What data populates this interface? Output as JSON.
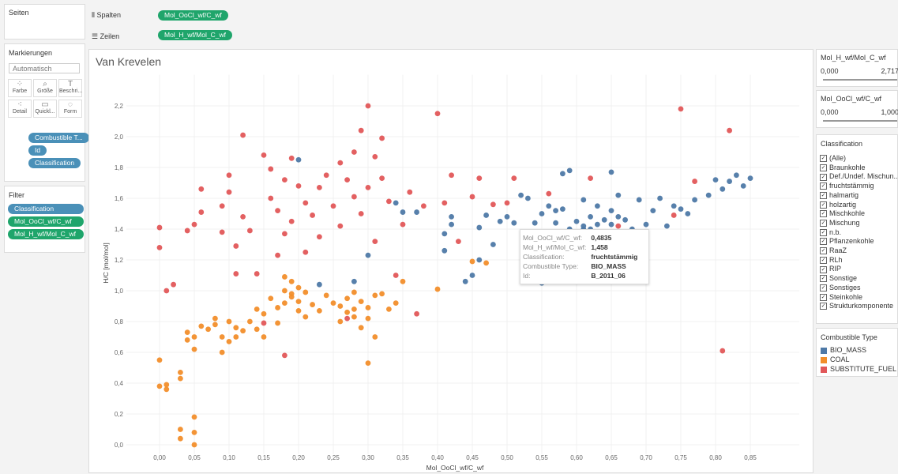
{
  "shelves": {
    "pages": "Seiten",
    "columns": {
      "label": "Spalten",
      "pill": "Mol_OoCl_wf/C_wf"
    },
    "rows": {
      "label": "Zeilen",
      "pill": "Mol_H_wf/Mol_C_wf"
    }
  },
  "marks": {
    "title": "Markierungen",
    "type": "Automatisch",
    "buttons": [
      "Farbe",
      "Größe",
      "Beschri...",
      "Detail",
      "Quickl...",
      "Form"
    ],
    "pills": [
      "Combustible T...",
      "Id",
      "Classification"
    ]
  },
  "filters": {
    "title": "Filter",
    "pills": [
      "Classification",
      "Mol_OoCl_wf/C_wf",
      "Mol_H_wf/Mol_C_wf"
    ]
  },
  "chart_data": {
    "type": "scatter",
    "title": "Van Krevelen",
    "x_label": "Mol_OoCl_wf/C_wf",
    "y_label": "H/C [mol/mol]",
    "xlim": [
      -0.025,
      0.875
    ],
    "ylim": [
      -0.05,
      2.35
    ],
    "grid": true,
    "xticks": [
      {
        "value": 0,
        "label": "0,00"
      },
      {
        "value": 0.05,
        "label": "0,05"
      },
      {
        "value": 0.1,
        "label": "0,10"
      },
      {
        "value": 0.15,
        "label": "0,15"
      },
      {
        "value": 0.2,
        "label": "0,20"
      },
      {
        "value": 0.25,
        "label": "0,25"
      },
      {
        "value": 0.3,
        "label": "0,30"
      },
      {
        "value": 0.35,
        "label": "0,35"
      },
      {
        "value": 0.4,
        "label": "0,40"
      },
      {
        "value": 0.45,
        "label": "0,45"
      },
      {
        "value": 0.5,
        "label": "0,50"
      },
      {
        "value": 0.55,
        "label": "0,55"
      },
      {
        "value": 0.6,
        "label": "0,60"
      },
      {
        "value": 0.65,
        "label": "0,65"
      },
      {
        "value": 0.7,
        "label": "0,70"
      },
      {
        "value": 0.75,
        "label": "0,75"
      },
      {
        "value": 0.8,
        "label": "0,80"
      },
      {
        "value": 0.85,
        "label": "0,85"
      }
    ],
    "yticks": [
      {
        "value": 0,
        "label": "0,0"
      },
      {
        "value": 0.2,
        "label": "0,2"
      },
      {
        "value": 0.4,
        "label": "0,4"
      },
      {
        "value": 0.6,
        "label": "0,6"
      },
      {
        "value": 0.8,
        "label": "0,8"
      },
      {
        "value": 1,
        "label": "1,0"
      },
      {
        "value": 1.2,
        "label": "1,2"
      },
      {
        "value": 1.4,
        "label": "1,4"
      },
      {
        "value": 1.6,
        "label": "1,6"
      },
      {
        "value": 1.8,
        "label": "1,8"
      },
      {
        "value": 2,
        "label": "2,0"
      },
      {
        "value": 2.2,
        "label": "2,2"
      }
    ],
    "series": [
      {
        "name": "BIO_MASS",
        "color": "#4e79a7",
        "x": [
          0.2,
          0.23,
          0.28,
          0.3,
          0.34,
          0.35,
          0.37,
          0.41,
          0.41,
          0.42,
          0.42,
          0.44,
          0.45,
          0.46,
          0.46,
          0.47,
          0.48,
          0.49,
          0.5,
          0.51,
          0.52,
          0.53,
          0.54,
          0.55,
          0.56,
          0.57,
          0.57,
          0.58,
          0.58,
          0.59,
          0.59,
          0.6,
          0.6,
          0.61,
          0.61,
          0.62,
          0.62,
          0.63,
          0.63,
          0.64,
          0.64,
          0.65,
          0.65,
          0.66,
          0.66,
          0.67,
          0.68,
          0.69,
          0.7,
          0.71,
          0.72,
          0.73,
          0.74,
          0.75,
          0.76,
          0.77,
          0.79,
          0.8,
          0.81,
          0.82,
          0.83,
          0.84,
          0.85,
          0.55,
          0.53,
          0.65,
          0.57,
          0.61
        ],
        "y": [
          1.85,
          1.04,
          1.06,
          1.23,
          1.57,
          1.51,
          1.51,
          1.26,
          1.37,
          1.43,
          1.48,
          1.06,
          1.1,
          1.2,
          1.41,
          1.49,
          1.3,
          1.45,
          1.48,
          1.44,
          1.62,
          1.6,
          1.44,
          1.5,
          1.55,
          1.35,
          1.44,
          1.53,
          1.76,
          1.4,
          1.78,
          1.45,
          1.38,
          1.42,
          1.59,
          1.48,
          1.4,
          1.55,
          1.43,
          1.46,
          1.38,
          1.52,
          1.43,
          1.62,
          1.48,
          1.46,
          1.4,
          1.59,
          1.43,
          1.52,
          1.6,
          1.42,
          1.55,
          1.53,
          1.5,
          1.59,
          1.62,
          1.72,
          1.66,
          1.71,
          1.75,
          1.68,
          1.73,
          1.05,
          1.18,
          1.77,
          1.52,
          1.4
        ]
      },
      {
        "name": "COAL",
        "color": "#f28e2b",
        "x": [
          0.0,
          0.0,
          0.01,
          0.01,
          0.03,
          0.03,
          0.03,
          0.03,
          0.05,
          0.05,
          0.05,
          0.04,
          0.04,
          0.05,
          0.06,
          0.05,
          0.07,
          0.08,
          0.08,
          0.09,
          0.09,
          0.1,
          0.1,
          0.11,
          0.11,
          0.12,
          0.13,
          0.14,
          0.15,
          0.15,
          0.16,
          0.17,
          0.17,
          0.18,
          0.18,
          0.19,
          0.19,
          0.2,
          0.2,
          0.21,
          0.22,
          0.23,
          0.24,
          0.25,
          0.26,
          0.26,
          0.27,
          0.27,
          0.28,
          0.28,
          0.29,
          0.29,
          0.3,
          0.3,
          0.31,
          0.31,
          0.3,
          0.32,
          0.33,
          0.34,
          0.35,
          0.4,
          0.45,
          0.47,
          0.18,
          0.19,
          0.2,
          0.14,
          0.21,
          0.28
        ],
        "y": [
          0.55,
          0.38,
          0.36,
          0.39,
          0.47,
          0.43,
          0.1,
          0.04,
          0.08,
          0.18,
          0.0,
          0.68,
          0.73,
          0.7,
          0.77,
          0.62,
          0.75,
          0.82,
          0.78,
          0.7,
          0.6,
          0.8,
          0.67,
          0.76,
          0.7,
          0.74,
          0.8,
          0.75,
          0.85,
          0.7,
          0.95,
          0.89,
          0.79,
          1.0,
          0.92,
          1.06,
          0.98,
          1.02,
          0.93,
          0.83,
          0.91,
          0.87,
          0.97,
          0.92,
          0.9,
          0.8,
          0.95,
          0.86,
          0.99,
          0.88,
          0.93,
          0.76,
          0.89,
          0.82,
          0.97,
          0.7,
          0.53,
          0.98,
          0.88,
          0.92,
          1.06,
          1.01,
          1.19,
          1.18,
          1.09,
          0.96,
          0.87,
          0.88,
          0.99,
          0.83
        ]
      },
      {
        "name": "SUBSTITUTE_FUEL",
        "color": "#e15759",
        "x": [
          0.0,
          0.0,
          0.01,
          0.02,
          0.04,
          0.05,
          0.06,
          0.06,
          0.09,
          0.09,
          0.1,
          0.1,
          0.11,
          0.11,
          0.12,
          0.13,
          0.14,
          0.15,
          0.16,
          0.16,
          0.17,
          0.17,
          0.18,
          0.18,
          0.19,
          0.19,
          0.2,
          0.21,
          0.21,
          0.22,
          0.23,
          0.23,
          0.24,
          0.25,
          0.26,
          0.26,
          0.27,
          0.28,
          0.28,
          0.29,
          0.29,
          0.3,
          0.3,
          0.31,
          0.31,
          0.32,
          0.32,
          0.33,
          0.34,
          0.35,
          0.36,
          0.37,
          0.38,
          0.4,
          0.41,
          0.42,
          0.43,
          0.45,
          0.46,
          0.48,
          0.5,
          0.51,
          0.56,
          0.62,
          0.66,
          0.74,
          0.75,
          0.82,
          0.81,
          0.77,
          0.18,
          0.15,
          0.27,
          0.12
        ],
        "y": [
          1.41,
          1.28,
          1.0,
          1.04,
          1.39,
          1.43,
          1.66,
          1.51,
          1.55,
          1.38,
          1.75,
          1.64,
          1.29,
          1.11,
          1.48,
          1.39,
          1.11,
          1.88,
          1.79,
          1.6,
          1.52,
          1.23,
          1.72,
          1.37,
          1.86,
          1.45,
          1.68,
          1.57,
          1.25,
          1.49,
          1.67,
          1.35,
          1.75,
          1.55,
          1.83,
          1.42,
          1.72,
          1.61,
          1.9,
          2.04,
          1.5,
          2.2,
          1.67,
          1.87,
          1.32,
          1.73,
          1.99,
          1.58,
          1.1,
          1.43,
          1.64,
          0.85,
          1.55,
          2.15,
          1.57,
          1.75,
          1.32,
          1.61,
          1.73,
          1.56,
          1.57,
          1.73,
          1.63,
          1.73,
          1.42,
          1.49,
          2.18,
          2.04,
          0.61,
          1.71,
          0.58,
          0.79,
          0.82,
          2.01
        ]
      }
    ]
  },
  "tooltip": {
    "rows": [
      [
        "Mol_OoCl_wf/C_wf:",
        "0,4835"
      ],
      [
        "Mol_H_wf/Mol_C_wf:",
        "1,458"
      ],
      [
        "Classification:",
        "fruchtstämmig"
      ],
      [
        "Combustible Type:",
        "BIO_MASS"
      ],
      [
        "Id:",
        "B_2011_06"
      ]
    ]
  },
  "right_panel": {
    "sliders": [
      {
        "title": "Mol_H_wf/Mol_C_wf",
        "min": "0,000",
        "max": "2,717"
      },
      {
        "title": "Mol_OoCl_wf/C_wf",
        "min": "0,000",
        "max": "1,000"
      }
    ],
    "classification": {
      "title": "Classification",
      "items": [
        "(Alle)",
        "Braunkohle",
        "Def./Undef. Mischun...",
        "fruchtstämmig",
        "halmartig",
        "holzartig",
        "Mischkohle",
        "Mischung",
        "n.b.",
        "Pflanzenkohle",
        "RaaZ",
        "RLh",
        "RIP",
        "Sonstige",
        "Sonstiges",
        "Steinkohle",
        "Strukturkomponente"
      ]
    },
    "legend_title": "Combustible Type"
  }
}
